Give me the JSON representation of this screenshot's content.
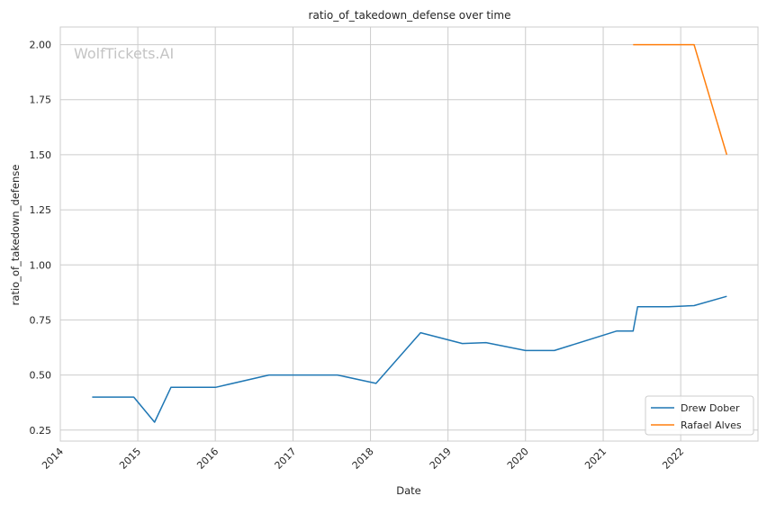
{
  "chart_data": {
    "type": "line",
    "title": "ratio_of_takedown_defense over time",
    "xlabel": "Date",
    "ylabel": "ratio_of_takedown_defense",
    "xlim": [
      "2014-01-01",
      "2022-12-31"
    ],
    "ylim": [
      0.2,
      2.08
    ],
    "x_ticks": [
      "2014",
      "2015",
      "2016",
      "2017",
      "2018",
      "2019",
      "2020",
      "2021",
      "2022"
    ],
    "y_ticks": [
      "0.25",
      "0.50",
      "0.75",
      "1.00",
      "1.25",
      "1.50",
      "1.75",
      "2.00"
    ],
    "grid": true,
    "legend_position": "lower-right",
    "watermark": "WolfTickets.AI",
    "series": [
      {
        "name": "Drew Dober",
        "color": "#1f77b4",
        "points": [
          {
            "x": "2014-05-31",
            "y": 0.4
          },
          {
            "x": "2014-12-13",
            "y": 0.4
          },
          {
            "x": "2015-03-21",
            "y": 0.286
          },
          {
            "x": "2015-06-06",
            "y": 0.444
          },
          {
            "x": "2016-01-02",
            "y": 0.444
          },
          {
            "x": "2016-09-10",
            "y": 0.5
          },
          {
            "x": "2017-07-29",
            "y": 0.5
          },
          {
            "x": "2018-01-27",
            "y": 0.462
          },
          {
            "x": "2018-08-25",
            "y": 0.692
          },
          {
            "x": "2019-03-09",
            "y": 0.643
          },
          {
            "x": "2019-06-29",
            "y": 0.647
          },
          {
            "x": "2020-01-01",
            "y": 0.611
          },
          {
            "x": "2020-05-16",
            "y": 0.611
          },
          {
            "x": "2021-03-06",
            "y": 0.7
          },
          {
            "x": "2021-05-22",
            "y": 0.7
          },
          {
            "x": "2021-06-12",
            "y": 0.81
          },
          {
            "x": "2021-11-06",
            "y": 0.81
          },
          {
            "x": "2022-03-05",
            "y": 0.815
          },
          {
            "x": "2022-08-06",
            "y": 0.857
          }
        ]
      },
      {
        "name": "Rafael Alves",
        "color": "#ff7f0e",
        "points": [
          {
            "x": "2021-05-22",
            "y": 2.0
          },
          {
            "x": "2021-11-06",
            "y": 2.0
          },
          {
            "x": "2022-03-05",
            "y": 2.0
          },
          {
            "x": "2022-08-06",
            "y": 1.5
          }
        ]
      }
    ]
  }
}
